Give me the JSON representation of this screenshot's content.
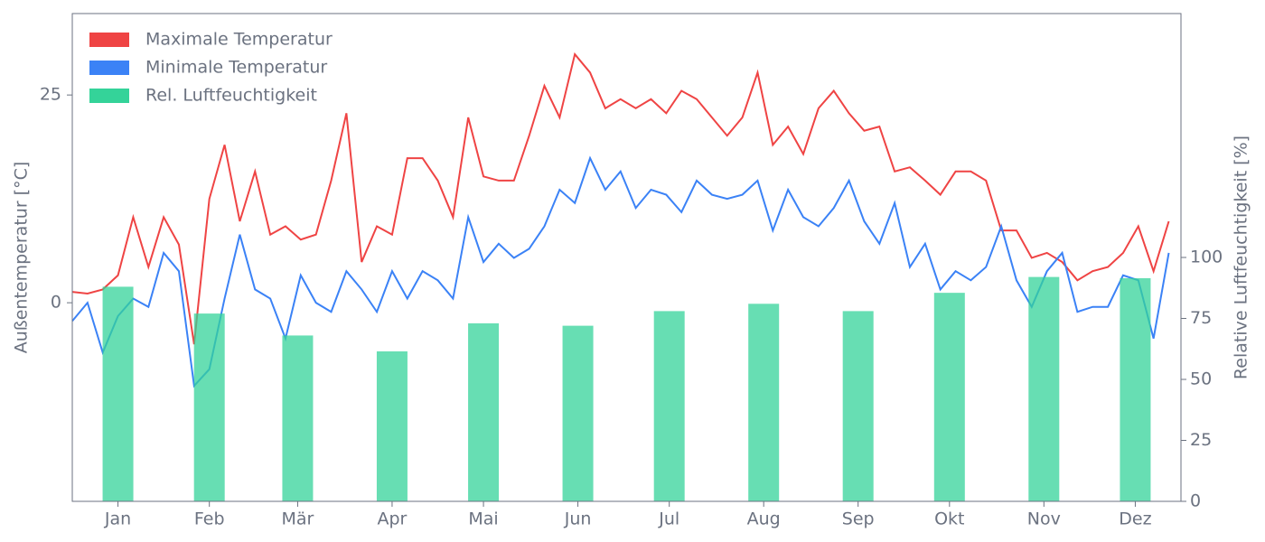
{
  "chart_data": {
    "type": "line",
    "ylabel": "Außentemperatur [°C]",
    "y2label": "Relative Luftfeuchtigkeit [%]",
    "legend": "upper left",
    "xlim": [
      0,
      364
    ],
    "xticks": [
      {
        "value": 15,
        "label": "Jan"
      },
      {
        "value": 45,
        "label": "Feb"
      },
      {
        "value": 74,
        "label": "Mär"
      },
      {
        "value": 105,
        "label": "Apr"
      },
      {
        "value": 135,
        "label": "Mai"
      },
      {
        "value": 166,
        "label": "Jun"
      },
      {
        "value": 196,
        "label": "Jul"
      },
      {
        "value": 227,
        "label": "Aug"
      },
      {
        "value": 258,
        "label": "Sep"
      },
      {
        "value": 288,
        "label": "Okt"
      },
      {
        "value": 319,
        "label": "Nov"
      },
      {
        "value": 349,
        "label": "Dez"
      }
    ],
    "ylim": [
      -23.9,
      34.8
    ],
    "yticks": [
      0,
      25
    ],
    "y2lim": [
      0,
      200
    ],
    "y2ticks": [
      0,
      25,
      50,
      75,
      100
    ],
    "x": [
      0,
      5,
      10,
      15,
      20,
      25,
      30,
      35,
      40,
      45,
      50,
      55,
      60,
      65,
      70,
      75,
      80,
      85,
      90,
      95,
      100,
      105,
      110,
      115,
      120,
      125,
      130,
      135,
      140,
      145,
      150,
      155,
      160,
      165,
      170,
      175,
      180,
      185,
      190,
      195,
      200,
      205,
      210,
      215,
      220,
      225,
      230,
      235,
      240,
      245,
      250,
      255,
      260,
      265,
      270,
      275,
      280,
      285,
      290,
      295,
      300,
      305,
      310,
      315,
      320,
      325,
      330,
      335,
      340,
      345,
      350,
      355,
      360
    ],
    "series": [
      {
        "name": "Maximale Temperatur",
        "color": "#ef4444",
        "type": "line",
        "values": [
          1.3,
          1.1,
          1.6,
          3.3,
          10.3,
          4.3,
          10.3,
          7,
          -5,
          12.5,
          19,
          9.8,
          15.8,
          8.2,
          9.2,
          7.6,
          8.2,
          14.7,
          22.8,
          4.9,
          9.2,
          8.2,
          17.4,
          17.4,
          14.7,
          10.3,
          22.3,
          15.2,
          14.7,
          14.7,
          20.1,
          26.1,
          22.3,
          29.9,
          27.7,
          23.4,
          24.5,
          23.4,
          24.5,
          22.8,
          25.5,
          24.5,
          22.3,
          20.1,
          22.3,
          27.7,
          19,
          21.2,
          17.9,
          23.4,
          25.5,
          22.8,
          20.7,
          21.2,
          15.8,
          16.3,
          14.7,
          13,
          15.8,
          15.8,
          14.7,
          8.7,
          8.7,
          5.4,
          6,
          4.9,
          2.7,
          3.8,
          4.3,
          6,
          9.2,
          3.8,
          9.8
        ]
      },
      {
        "name": "Minimale Temperatur",
        "color": "#3b82f6",
        "type": "line",
        "values": [
          -2.2,
          0,
          -6,
          -1.6,
          0.5,
          -0.5,
          6,
          3.8,
          -10,
          -8,
          0.5,
          8.2,
          1.6,
          0.5,
          -4.3,
          3.3,
          0,
          -1.1,
          3.8,
          1.6,
          -1.1,
          3.8,
          0.5,
          3.8,
          2.7,
          0.5,
          10.3,
          4.9,
          7.1,
          5.4,
          6.5,
          9.2,
          13.6,
          12,
          17.4,
          13.6,
          15.8,
          11.4,
          13.6,
          13,
          10.9,
          14.7,
          13,
          12.5,
          13,
          14.7,
          8.7,
          13.6,
          10.3,
          9.2,
          11.4,
          14.7,
          9.8,
          7.1,
          12,
          4.3,
          7.1,
          1.6,
          3.8,
          2.7,
          4.3,
          9.2,
          2.7,
          -0.5,
          3.8,
          6,
          -1.1,
          -0.5,
          -0.5,
          3.3,
          2.7,
          -4.3,
          6
        ]
      },
      {
        "name": "Rel. Luftfeuchtigkeit",
        "color": "#34d399",
        "type": "bar",
        "axis": "y2",
        "x": [
          15,
          45,
          74,
          105,
          135,
          166,
          196,
          227,
          258,
          288,
          319,
          349
        ],
        "values": [
          88,
          77,
          68,
          61.5,
          73,
          72,
          78,
          81,
          78,
          85.5,
          92,
          91.5
        ]
      }
    ]
  }
}
